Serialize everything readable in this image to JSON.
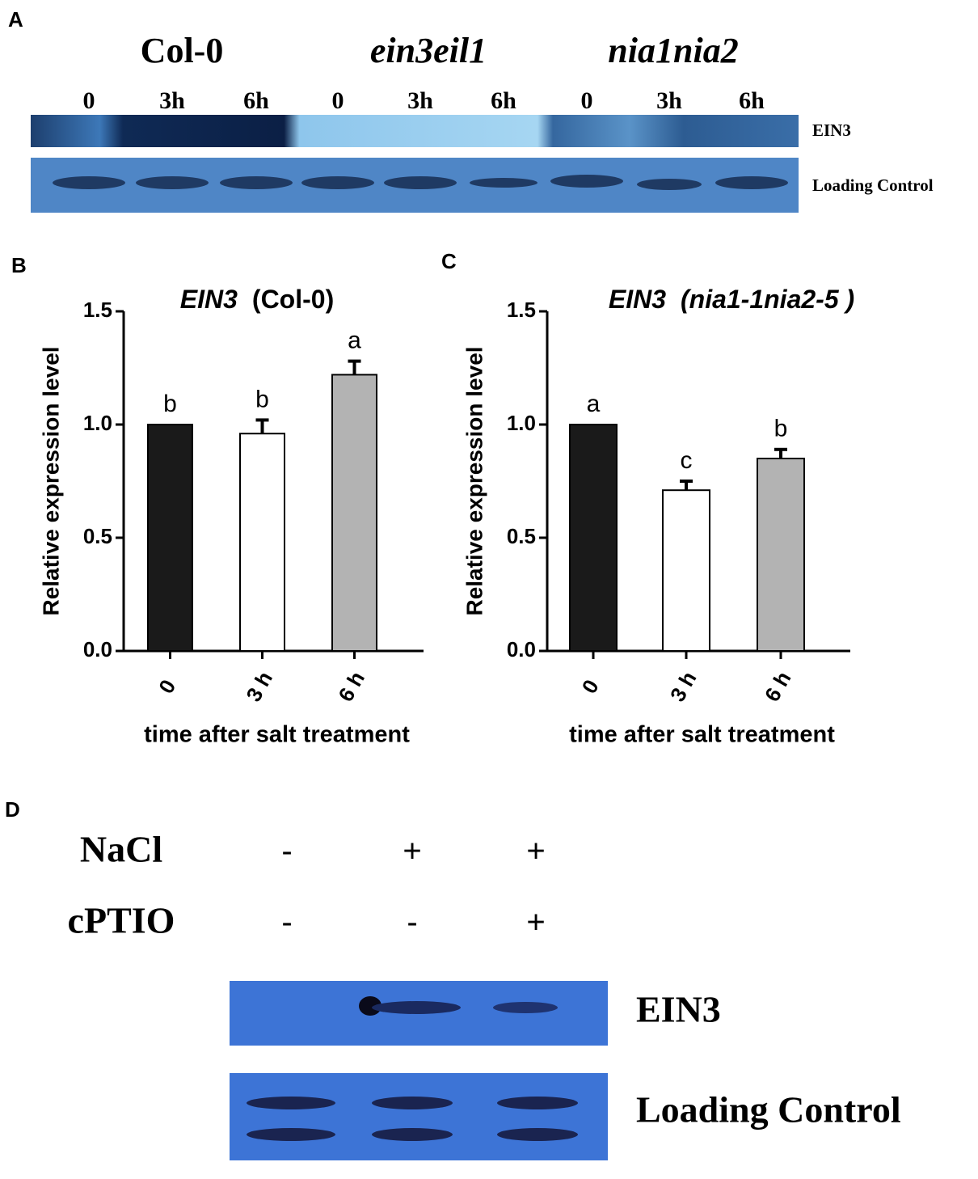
{
  "panel_a": {
    "label": "A",
    "groups": [
      "Col-0",
      "ein3eil1",
      "nia1nia2"
    ],
    "lanes": [
      "0",
      "3h",
      "6h",
      "0",
      "3h",
      "6h",
      "0",
      "3h",
      "6h"
    ],
    "bands": [
      "EIN3",
      "Loading Control"
    ]
  },
  "chart_data": [
    {
      "type": "bar",
      "panel": "B",
      "title": [
        "EIN3",
        "(Col-0)"
      ],
      "y_label": "Relative expression level",
      "x_label": "time after salt treatment",
      "categories": [
        "0",
        "3 h",
        "6 h"
      ],
      "values": [
        1.0,
        0.96,
        1.22
      ],
      "errors": [
        0,
        0.06,
        0.06
      ],
      "significance": [
        "b",
        "b",
        "a"
      ],
      "colors": [
        "#1a1a1a",
        "#ffffff",
        "#b3b3b3"
      ],
      "ylim": [
        0,
        1.5
      ],
      "yticks": [
        {
          "value": 0,
          "label": "0.0"
        },
        {
          "value": 0.5,
          "label": "0.5"
        },
        {
          "value": 1,
          "label": "1.0"
        },
        {
          "value": 1.5,
          "label": "1.5"
        }
      ]
    },
    {
      "type": "bar",
      "panel": "C",
      "title": [
        "EIN3",
        "(nia1-1nia2-5 )"
      ],
      "y_label": "Relative expression level",
      "x_label": "time after salt treatment",
      "categories": [
        "0",
        "3 h",
        "6 h"
      ],
      "values": [
        1.0,
        0.71,
        0.85
      ],
      "errors": [
        0,
        0.04,
        0.04
      ],
      "significance": [
        "a",
        "c",
        "b"
      ],
      "colors": [
        "#1a1a1a",
        "#ffffff",
        "#b3b3b3"
      ],
      "ylim": [
        0,
        1.5
      ],
      "yticks": [
        {
          "value": 0,
          "label": "0.0"
        },
        {
          "value": 0.5,
          "label": "0.5"
        },
        {
          "value": 1,
          "label": "1.0"
        },
        {
          "value": 1.5,
          "label": "1.5"
        }
      ]
    }
  ],
  "panel_d": {
    "label": "D",
    "rows": [
      {
        "name": "NaCl",
        "signs": [
          "-",
          "+",
          "+"
        ]
      },
      {
        "name": "cPTIO",
        "signs": [
          "-",
          "-",
          "+"
        ]
      }
    ],
    "bands": [
      "EIN3",
      "Loading Control"
    ]
  }
}
